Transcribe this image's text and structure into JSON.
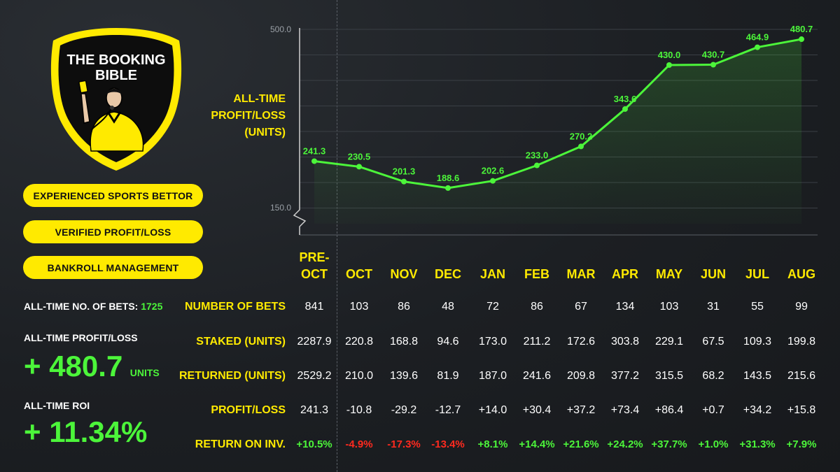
{
  "brand": {
    "name_line1": "THE BOOKING",
    "name_line2": "BIBLE",
    "colors": {
      "yellow": "#ffea00",
      "green": "#4cf53a",
      "red": "#ff2a1f",
      "background": "#1c1f23"
    }
  },
  "badges": [
    "EXPERIENCED SPORTS BETTOR",
    "VERIFIED PROFIT/LOSS",
    "BANKROLL MANAGEMENT"
  ],
  "stats": {
    "bets_label": "ALL-TIME NO. OF BETS:",
    "bets_value": "1725",
    "pl_label": "ALL-TIME PROFIT/LOSS",
    "pl_value": "+ 480.7",
    "pl_unit": "UNITS",
    "roi_label": "ALL-TIME ROI",
    "roi_value": "+ 11.34%"
  },
  "chart_data": {
    "type": "line",
    "ylabel_lines": [
      "ALL-TIME",
      "PROFIT/LOSS",
      "(UNITS)"
    ],
    "y_ticks": [
      "500.0",
      "150.0"
    ],
    "ylim": [
      150,
      500
    ],
    "axis_break": true,
    "categories": [
      "PRE-OCT",
      "OCT",
      "NOV",
      "DEC",
      "JAN",
      "FEB",
      "MAR",
      "APR",
      "MAY",
      "JUN",
      "JUL",
      "AUG"
    ],
    "values": [
      241.3,
      230.5,
      201.3,
      188.6,
      202.6,
      233.0,
      270.2,
      343.6,
      430.0,
      430.7,
      464.9,
      480.7
    ],
    "value_labels": [
      "241.3",
      "230.5",
      "201.3",
      "188.6",
      "202.6",
      "233.0",
      "270.2",
      "343.6",
      "430.0",
      "430.7",
      "464.9",
      "480.7"
    ],
    "line_color": "#4cf53a",
    "grid": true
  },
  "table": {
    "months": [
      [
        "PRE-",
        "OCT"
      ],
      [
        "OCT"
      ],
      [
        "NOV"
      ],
      [
        "DEC"
      ],
      [
        "JAN"
      ],
      [
        "FEB"
      ],
      [
        "MAR"
      ],
      [
        "APR"
      ],
      [
        "MAY"
      ],
      [
        "JUN"
      ],
      [
        "JUL"
      ],
      [
        "AUG"
      ]
    ],
    "rows": [
      {
        "label": "NUMBER OF BETS",
        "values": [
          "841",
          "103",
          "86",
          "48",
          "72",
          "86",
          "67",
          "134",
          "103",
          "31",
          "55",
          "99"
        ]
      },
      {
        "label": "STAKED (UNITS)",
        "values": [
          "2287.9",
          "220.8",
          "168.8",
          "94.6",
          "173.0",
          "211.2",
          "172.6",
          "303.8",
          "229.1",
          "67.5",
          "109.3",
          "199.8"
        ]
      },
      {
        "label": "RETURNED (UNITS)",
        "values": [
          "2529.2",
          "210.0",
          "139.6",
          "81.9",
          "187.0",
          "241.6",
          "209.8",
          "377.2",
          "315.5",
          "68.2",
          "143.5",
          "215.6"
        ]
      },
      {
        "label": "PROFIT/LOSS",
        "values": [
          "241.3",
          "-10.8",
          "-29.2",
          "-12.7",
          "+14.0",
          "+30.4",
          "+37.2",
          "+73.4",
          "+86.4",
          "+0.7",
          "+34.2",
          "+15.8"
        ]
      },
      {
        "label": "RETURN ON INV.",
        "values": [
          "+10.5%",
          "-4.9%",
          "-17.3%",
          "-13.4%",
          "+8.1%",
          "+14.4%",
          "+21.6%",
          "+24.2%",
          "+37.7%",
          "+1.0%",
          "+31.3%",
          "+7.9%"
        ]
      }
    ]
  }
}
